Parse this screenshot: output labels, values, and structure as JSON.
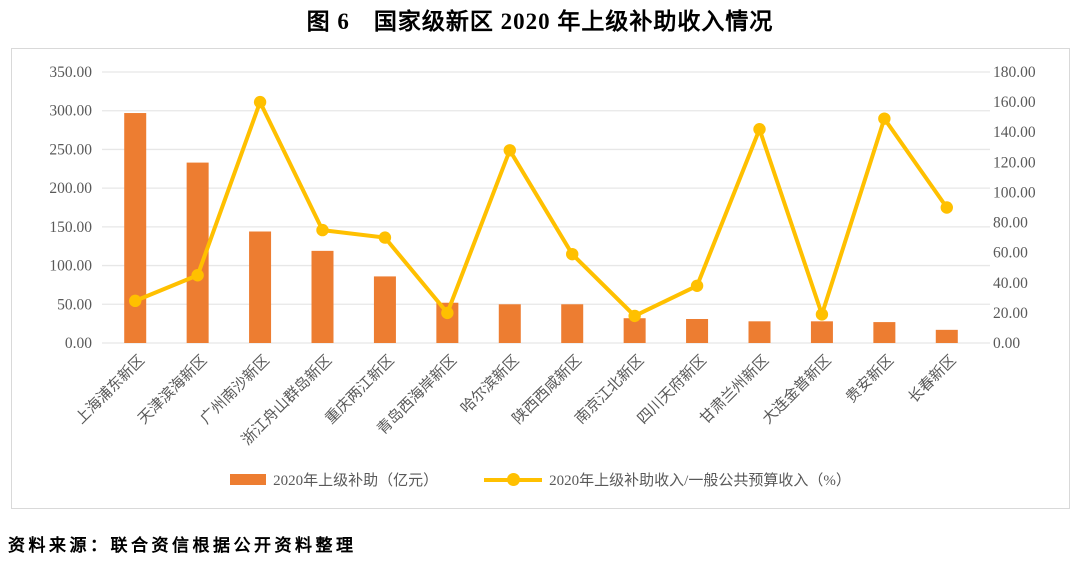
{
  "title": "图 6　国家级新区 2020 年上级补助收入情况",
  "source_note": "资料来源：联合资信根据公开资料整理",
  "colors": {
    "bar_series": "#ED7D31",
    "line_series": "#FFC000",
    "axis_text": "#595959",
    "gridline": "#E7E7E7",
    "chart_border": "#D9D9D9"
  },
  "chart_data": {
    "type": "combo_bar_line",
    "title": "图 6　国家级新区 2020 年上级补助收入情况",
    "categories": [
      "上海浦东新区",
      "天津滨海新区",
      "广州南沙新区",
      "浙江舟山群岛新区",
      "重庆两江新区",
      "青岛西海岸新区",
      "哈尔滨新区",
      "陕西西咸新区",
      "南京江北新区",
      "四川天府新区",
      "甘肃兰州新区",
      "大连金普新区",
      "贵安新区",
      "长春新区"
    ],
    "series": [
      {
        "name": "2020年上级补助（亿元）",
        "chart_type": "bar",
        "axis": "left",
        "color": "#ED7D31",
        "values": [
          297,
          233,
          144,
          119,
          86,
          52,
          50,
          50,
          32,
          31,
          28,
          28,
          27,
          17
        ]
      },
      {
        "name": "2020年上级补助收入/一般公共预算收入（%）",
        "chart_type": "line",
        "axis": "right",
        "color": "#FFC000",
        "values": [
          28,
          45,
          160,
          75,
          70,
          20,
          128,
          59,
          18,
          38,
          142,
          19,
          149,
          90
        ]
      }
    ],
    "left_axis": {
      "min": 0,
      "max": 350,
      "step": 50,
      "ticks": [
        "0.00",
        "50.00",
        "100.00",
        "150.00",
        "200.00",
        "250.00",
        "300.00",
        "350.00"
      ]
    },
    "right_axis": {
      "min": 0,
      "max": 180,
      "step": 20,
      "ticks": [
        "0.00",
        "20.00",
        "40.00",
        "60.00",
        "80.00",
        "100.00",
        "120.00",
        "140.00",
        "160.00",
        "180.00"
      ]
    },
    "grid": true,
    "legend_position": "bottom"
  }
}
